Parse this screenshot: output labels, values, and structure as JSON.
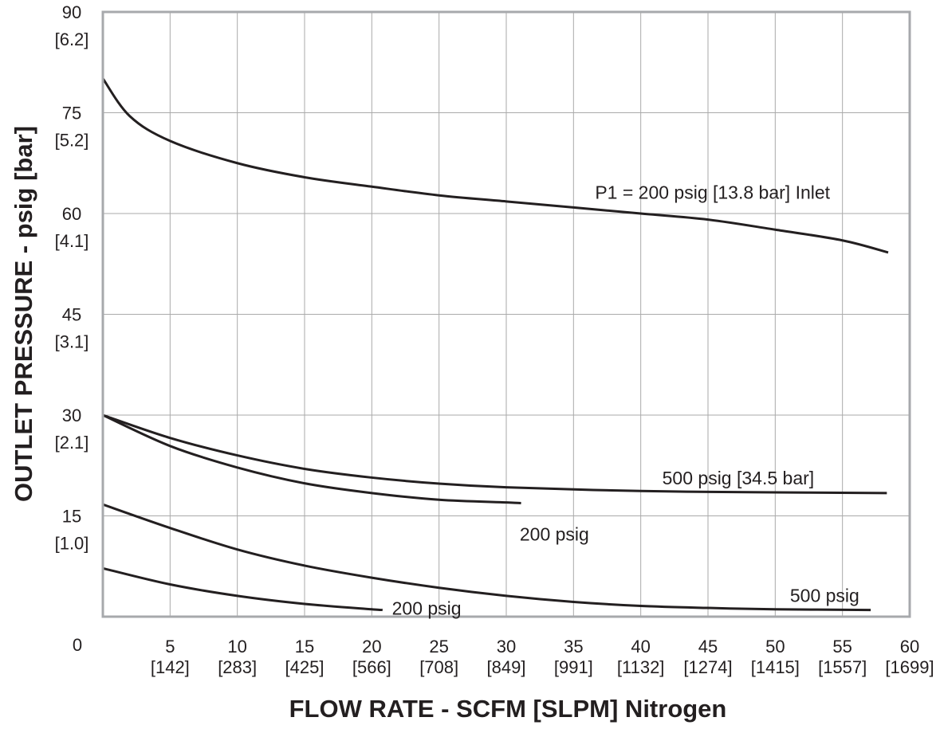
{
  "chart_data": {
    "type": "line",
    "xlabel": "FLOW RATE - SCFM [SLPM] Nitrogen",
    "ylabel": "OUTLET PRESSURE - psig [bar]",
    "xlim": [
      0,
      60
    ],
    "ylim": [
      0,
      90
    ],
    "grid": true,
    "x_ticks": [
      {
        "v": 5,
        "l1": "5",
        "l2": "[142]"
      },
      {
        "v": 10,
        "l1": "10",
        "l2": "[283]"
      },
      {
        "v": 15,
        "l1": "15",
        "l2": "[425]"
      },
      {
        "v": 20,
        "l1": "20",
        "l2": "[566]"
      },
      {
        "v": 25,
        "l1": "25",
        "l2": "[708]"
      },
      {
        "v": 30,
        "l1": "30",
        "l2": "[849]"
      },
      {
        "v": 35,
        "l1": "35",
        "l2": "[991]"
      },
      {
        "v": 40,
        "l1": "40",
        "l2": "[1132]"
      },
      {
        "v": 45,
        "l1": "45",
        "l2": "[1274]"
      },
      {
        "v": 50,
        "l1": "50",
        "l2": "[1415]"
      },
      {
        "v": 55,
        "l1": "55",
        "l2": "[1557]"
      },
      {
        "v": 60,
        "l1": "60",
        "l2": "[1699]"
      }
    ],
    "y_ticks": [
      {
        "v": 15,
        "l1": "15",
        "l2": "[1.0]"
      },
      {
        "v": 30,
        "l1": "30",
        "l2": "[2.1]"
      },
      {
        "v": 45,
        "l1": "45",
        "l2": "[3.1]"
      },
      {
        "v": 60,
        "l1": "60",
        "l2": "[4.1]"
      },
      {
        "v": 75,
        "l1": "75",
        "l2": "[5.2]"
      },
      {
        "v": 90,
        "l1": "90",
        "l2": "[6.2]"
      }
    ],
    "origin_label": "0",
    "series": [
      {
        "name": "P1 = 200 psig [13.8 bar] Inlet",
        "x": [
          0,
          2,
          5,
          10,
          15,
          20,
          25,
          30,
          35,
          40,
          45,
          50,
          55,
          58.4
        ],
        "y": [
          80.1,
          74.5,
          70.8,
          67.5,
          65.4,
          64.0,
          62.7,
          61.8,
          60.9,
          60.0,
          59.1,
          57.6,
          56.0,
          54.2
        ]
      },
      {
        "name": "500 psig [34.5 bar]",
        "x": [
          0,
          5,
          10,
          15,
          20,
          25,
          30,
          40,
          50,
          58.3
        ],
        "y": [
          30.0,
          26.6,
          24.0,
          22.0,
          20.7,
          19.8,
          19.25,
          18.7,
          18.5,
          18.4
        ]
      },
      {
        "name": "200 psig",
        "x": [
          0,
          5,
          10,
          15,
          20,
          25,
          30,
          31.1
        ],
        "y": [
          30.0,
          25.4,
          22.2,
          19.85,
          18.4,
          17.4,
          17.0,
          16.9
        ]
      },
      {
        "name": "500 psig",
        "x": [
          0,
          5,
          10,
          15,
          20,
          25,
          30,
          35,
          40,
          45,
          50,
          57.1
        ],
        "y": [
          16.7,
          13.2,
          10.0,
          7.6,
          5.8,
          4.3,
          3.1,
          2.2,
          1.6,
          1.3,
          1.1,
          1.0
        ]
      },
      {
        "name": "200 psig",
        "x": [
          0,
          5,
          10,
          15,
          20,
          20.8
        ],
        "y": [
          7.2,
          4.8,
          3.1,
          1.9,
          1.1,
          1.0
        ]
      }
    ],
    "annotations": [
      {
        "text": "P1 = 200 psig [13.8 bar] Inlet",
        "x": 36.6,
        "y": 62.2
      },
      {
        "text": "500 psig [34.5 bar]",
        "x": 41.6,
        "y": 19.7
      },
      {
        "text": "200 psig",
        "x": 31.0,
        "y": 11.3
      },
      {
        "text": "500 psig",
        "x": 51.1,
        "y": 2.2
      },
      {
        "text": "200 psig",
        "x": 21.5,
        "y": 0.3
      }
    ],
    "colors": {
      "line": "#231f20",
      "grid": "#aaaaaa",
      "frame": "#a7a9ac"
    }
  }
}
